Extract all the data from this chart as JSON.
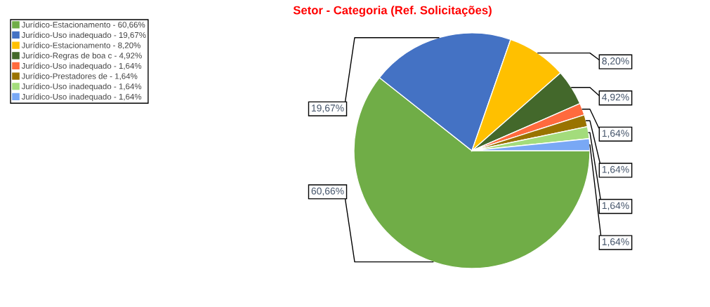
{
  "chart_data": {
    "type": "pie",
    "title": "Setor - Categoria (Ref. Solicitações)",
    "categories": [
      "Jurídico-Estacionamento - 60,66%",
      "Jurídico-Uso inadequado - 19,67%",
      "Jurídico-Estacionamento - 8,20%",
      "Jurídico-Regras de boa c - 4,92%",
      "Jurídico-Uso inadequado - 1,64%",
      "Jurídico-Prestadores de - 1,64%",
      "Jurídico-Uso inadequado - 1,64%",
      "Jurídico-Uso inadequado - 1,64%"
    ],
    "values": [
      60.66,
      19.67,
      8.2,
      4.92,
      1.64,
      1.64,
      1.64,
      1.64
    ],
    "colors": [
      "#70ad47",
      "#4472c4",
      "#ffc000",
      "#43682b",
      "#ff6a3d",
      "#997300",
      "#a3dc7c",
      "#79a8f5"
    ],
    "value_labels": [
      "60,66%",
      "19,67%",
      "8,20%",
      "4,92%",
      "1,64%",
      "1,64%",
      "1,64%",
      "1,64%"
    ],
    "legend": "top left"
  }
}
